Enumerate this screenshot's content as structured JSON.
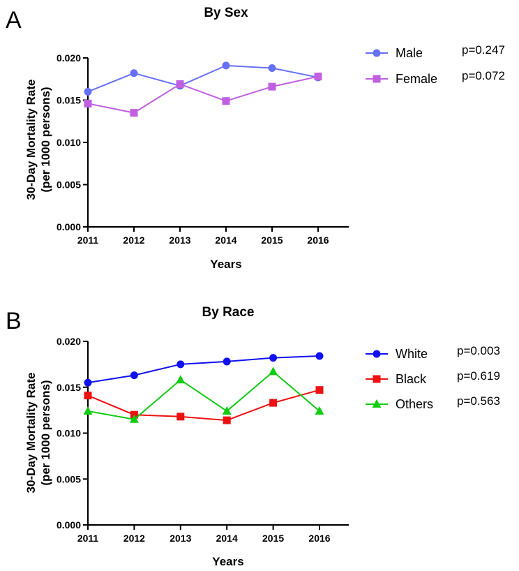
{
  "chart_data": [
    {
      "type": "line",
      "panel": "A",
      "title": "By  Sex",
      "xlabel": "Years",
      "ylabel": [
        "30-Day Mortality Rate",
        "(per 1000 persons)"
      ],
      "categories": [
        "2011",
        "2012",
        "2013",
        "2014",
        "2015",
        "2016"
      ],
      "ylim": [
        0,
        0.02
      ],
      "yticks": [
        "0.000",
        "0.005",
        "0.010",
        "0.015",
        "0.020"
      ],
      "grid": false,
      "legend_position": "right",
      "series": [
        {
          "name": "Male",
          "pvalue": "p=0.247",
          "color": "#6670f5",
          "marker": "circle",
          "values": [
            0.016,
            0.0182,
            0.0167,
            0.0191,
            0.0188,
            0.0177
          ]
        },
        {
          "name": "Female",
          "pvalue": "p=0.072",
          "color": "#c060e0",
          "marker": "square",
          "values": [
            0.0146,
            0.0135,
            0.0169,
            0.0149,
            0.0166,
            0.0178
          ]
        }
      ]
    },
    {
      "type": "line",
      "panel": "B",
      "title": "By Race",
      "xlabel": "Years",
      "ylabel": [
        "30-Day Mortality Rate",
        "(per 1000 persons)"
      ],
      "categories": [
        "2011",
        "2012",
        "2013",
        "2014",
        "2015",
        "2016"
      ],
      "ylim": [
        0,
        0.02
      ],
      "yticks": [
        "0.000",
        "0.005",
        "0.010",
        "0.015",
        "0.020"
      ],
      "grid": false,
      "legend_position": "right",
      "series": [
        {
          "name": "White",
          "pvalue": "p=0.003",
          "color": "#1010f0",
          "marker": "circle",
          "values": [
            0.0155,
            0.0163,
            0.0175,
            0.0178,
            0.0182,
            0.0184
          ]
        },
        {
          "name": "Black",
          "pvalue": "p=0.619",
          "color": "#ee1111",
          "marker": "square",
          "values": [
            0.0141,
            0.012,
            0.0118,
            0.0114,
            0.0133,
            0.0147
          ]
        },
        {
          "name": "Others",
          "pvalue": "p=0.563",
          "color": "#11cc11",
          "marker": "triangle",
          "values": [
            0.0124,
            0.0115,
            0.0158,
            0.0124,
            0.0167,
            0.0124
          ]
        }
      ]
    }
  ]
}
